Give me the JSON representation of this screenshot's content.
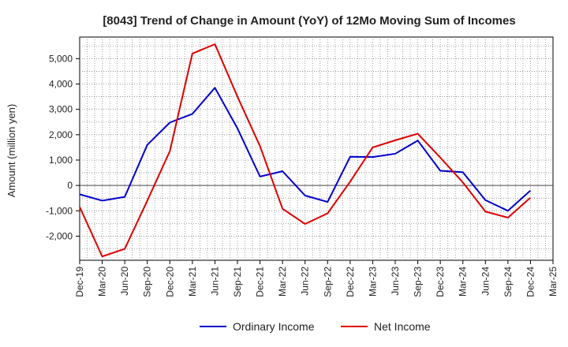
{
  "chart_data": {
    "type": "line",
    "title": "[8043]  Trend of Change in Amount (YoY) of 12Mo Moving Sum of Incomes",
    "xlabel": "",
    "ylabel": "Amount (million yen)",
    "categories": [
      "Dec-19",
      "Mar-20",
      "Jun-20",
      "Sep-20",
      "Dec-20",
      "Mar-21",
      "Jun-21",
      "Sep-21",
      "Dec-21",
      "Mar-22",
      "Jun-22",
      "Sep-22",
      "Dec-22",
      "Mar-23",
      "Jun-23",
      "Sep-23",
      "Dec-23",
      "Mar-24",
      "Jun-24",
      "Sep-24",
      "Dec-24",
      "Mar-25"
    ],
    "yticks": [
      -2000,
      -1000,
      0,
      1000,
      2000,
      3000,
      4000,
      5000
    ],
    "ytick_labels": [
      "-2,000",
      "-1,000",
      "0",
      "1,000",
      "2,000",
      "3,000",
      "4,000",
      "5,000"
    ],
    "ylim": [
      -2950,
      5850
    ],
    "grid": true,
    "legend_position": "bottom-center",
    "series": [
      {
        "name": "Ordinary Income",
        "color": "#0000cc",
        "values": [
          -350,
          -600,
          -450,
          1600,
          2480,
          2820,
          3850,
          2250,
          350,
          560,
          -400,
          -650,
          1130,
          1120,
          1250,
          1770,
          580,
          520,
          -580,
          -1000,
          -200,
          null
        ]
      },
      {
        "name": "Net Income",
        "color": "#dd0000",
        "values": [
          -850,
          -2800,
          -2500,
          -600,
          1350,
          5200,
          5570,
          3500,
          1550,
          -920,
          -1520,
          -1100,
          150,
          1500,
          1780,
          2040,
          1100,
          120,
          -1030,
          -1270,
          -480,
          null
        ]
      }
    ]
  }
}
